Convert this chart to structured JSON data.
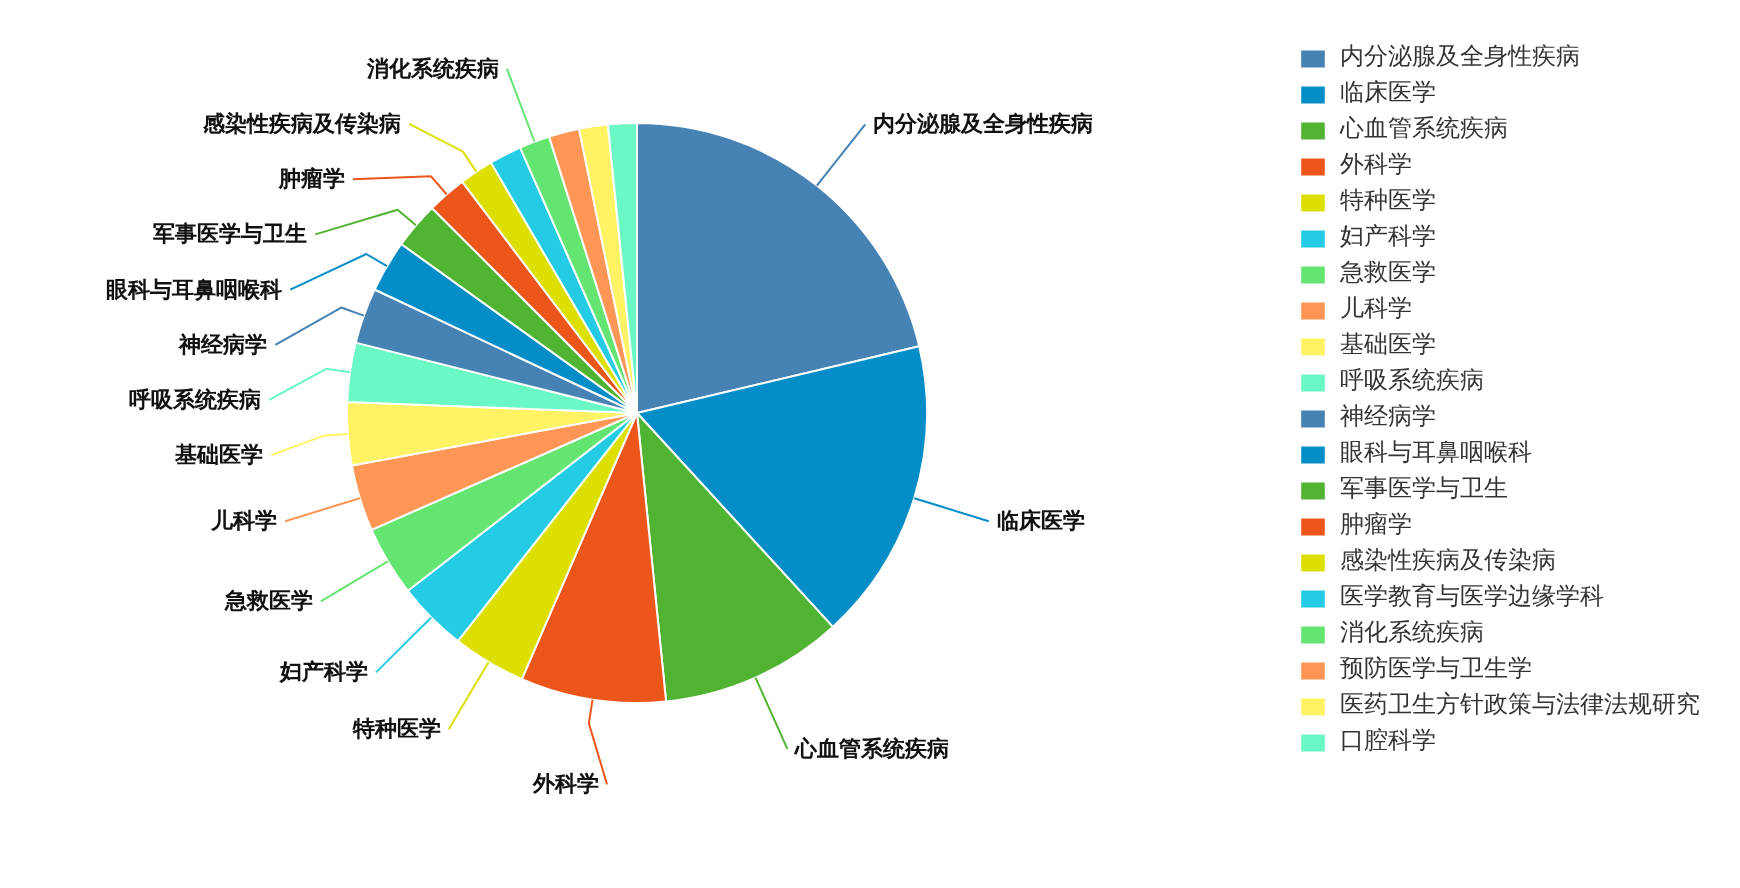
{
  "chart_data": {
    "type": "pie",
    "categories": [
      "内分泌腺及全身性疾病",
      "临床医学",
      "心血管系统疾病",
      "外科学",
      "特种医学",
      "妇产科学",
      "急救医学",
      "儿科学",
      "基础医学",
      "呼吸系统疾病",
      "神经病学",
      "眼科与耳鼻咽喉科",
      "军事医学与卫生",
      "肿瘤学",
      "感染性疾病及传染病",
      "医学教育与医学边缘学科",
      "消化系统疾病",
      "预防医学与卫生学",
      "医药卫生方针政策与法律法规研究",
      "口腔科学"
    ],
    "values": [
      21.3,
      16.9,
      10.2,
      8.1,
      4.1,
      3.9,
      3.9,
      3.7,
      3.5,
      3.3,
      3.1,
      2.9,
      2.6,
      2.2,
      1.9,
      1.8,
      1.7,
      1.7,
      1.6,
      1.6
    ],
    "colors": [
      "#4682b4",
      "#058dc7",
      "#50b432",
      "#ed561b",
      "#dddf00",
      "#24cbe5",
      "#64e572",
      "#ff9655",
      "#fff263",
      "#6af9c4",
      "#4682b4",
      "#058dc7",
      "#50b432",
      "#ed561b",
      "#dddf00",
      "#24cbe5",
      "#64e572",
      "#ff9655",
      "#fff263",
      "#6af9c4"
    ],
    "value_labels": [
      "内分泌腺及全身性疾病",
      "临床医学",
      "心血管系统疾病",
      "外科学",
      "特种医学",
      "妇产科学",
      "急救医学",
      "儿科学",
      "基础医学",
      "呼吸系统疾病",
      "神经病学",
      "眼科与耳鼻咽喉科",
      "军事医学与卫生",
      "肿瘤学",
      "感染性疾病及传染病",
      null,
      "消化系统疾病",
      null,
      null,
      null
    ],
    "legend": "right"
  }
}
